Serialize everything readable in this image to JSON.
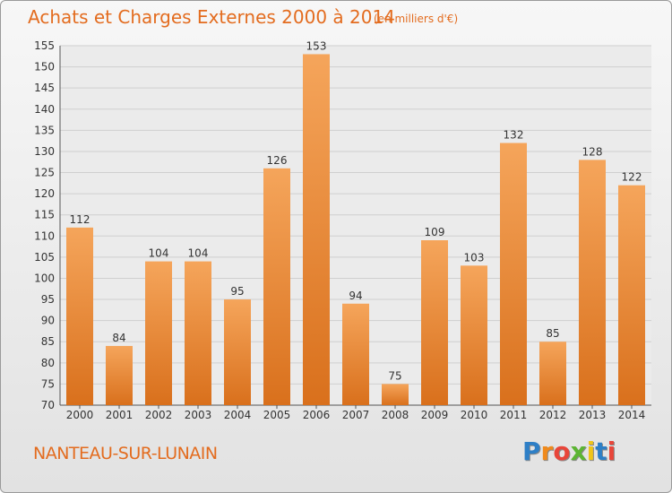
{
  "header": {
    "title": "Achats et Charges Externes 2000 à 2014",
    "subtitle": "(en milliers d'€)"
  },
  "footer": {
    "commune": "NANTEAU-SUR-LUNAIN",
    "logo_letters": [
      "P",
      "r",
      "o",
      "x",
      "i",
      "t",
      "i"
    ],
    "logo_colors": [
      "#2e7fc6",
      "#f08a1c",
      "#e8463a",
      "#5cb533",
      "#f0c419",
      "#2e7fc6",
      "#e8463a"
    ]
  },
  "chart_data": {
    "type": "bar",
    "categories": [
      "2000",
      "2001",
      "2002",
      "2003",
      "2004",
      "2005",
      "2006",
      "2007",
      "2008",
      "2009",
      "2010",
      "2011",
      "2012",
      "2013",
      "2014"
    ],
    "values": [
      112,
      84,
      104,
      104,
      95,
      126,
      153,
      94,
      75,
      109,
      103,
      132,
      85,
      128,
      122
    ],
    "title": "Achats et Charges Externes 2000 à 2014",
    "ylim": [
      70,
      155
    ],
    "yticks": [
      70,
      75,
      80,
      85,
      90,
      95,
      100,
      105,
      110,
      115,
      120,
      125,
      130,
      135,
      140,
      145,
      150,
      155
    ],
    "grid": true,
    "bar_color_top": "#f5a55b",
    "bar_color_bottom": "#d9701c"
  }
}
